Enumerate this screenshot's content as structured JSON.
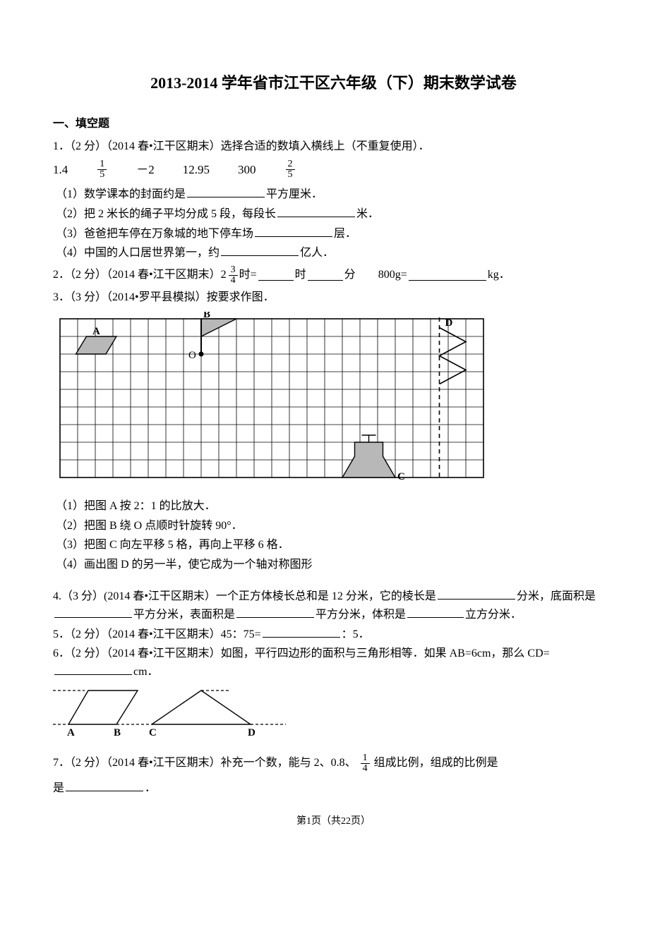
{
  "title": "2013-2014 学年省市江干区六年级（下）期末数学试卷",
  "section1": "一、填空题",
  "q1": {
    "header": "1．（2 分）（2014 春•江干区期末）选择合适的数填入横线上（不重复使用）．",
    "numbers": {
      "n1": "1.4",
      "n2_num": "1",
      "n2_den": "5",
      "n3": "－2",
      "n4": "12.95",
      "n5": "300",
      "n6_num": "2",
      "n6_den": "5"
    },
    "p1a": "（1）数学课本的封面约是",
    "p1b": "平方厘米．",
    "p2a": "（2）把 2 米长的绳子平均分成 5 段，每段长",
    "p2b": "米．",
    "p3a": "（3）爸爸把车停在万象城的地下停车场",
    "p3b": "层．",
    "p4a": "（4）中国的人口居世界第一，约",
    "p4b": "亿人．"
  },
  "q2": {
    "a": "2．（2 分）（2014 春•江干区期末）",
    "mixed_whole": "2",
    "mixed_num": "3",
    "mixed_den": "4",
    "b": "时=",
    "c": "时",
    "d": "分",
    "gap": "　　",
    "e": "800g=",
    "f": "kg．"
  },
  "q3": {
    "header": "3．（3 分）（2014•罗平县模拟）按要求作图．",
    "p1": "（1）把图 A 按 2：1 的比放大．",
    "p2": "（2）把图 B 绕 O 点顺时针旋转 90°．",
    "p3": "（3）把图 C 向左平移 5 格，再向上平移 6 格．",
    "p4": "（4）画出图 D 的另一半，使它成为一个轴对称图形"
  },
  "q4": {
    "a": "4.（3 分）(2014 春•江干区期末）一个正方体棱长总和是 12 分米，它的棱长是",
    "b": "分米，底面积是",
    "c": "平方分米，表面积是",
    "d": "平方分米，体积是",
    "e": "立方分米．"
  },
  "q5": {
    "a": "5．（2 分）（2014 春•江干区期末）45：75=",
    "b": "：5．"
  },
  "q6": {
    "a": "6．（2 分）（2014 春•江干区期末）如图，平行四边形的面积与三角形相等．如果 AB=6cm，那么 CD=",
    "b": "cm．",
    "labels": {
      "A": "A",
      "B": "B",
      "C": "C",
      "D": "D"
    }
  },
  "q7": {
    "a": "7．（2 分）（2014 春•江干区期末）补充一个数，能与 2、0.8、",
    "frac_num": "1",
    "frac_den": "4",
    "b": "组成比例，组成的比例是",
    "c": "．"
  },
  "footer": "第1页（共22页）",
  "grid": {
    "cols": 24,
    "rows": 9,
    "cell": 25,
    "labels": {
      "A": "A",
      "B": "B",
      "O": "O",
      "C": "C",
      "D": "D"
    },
    "colors": {
      "fill": "#b8b8b8",
      "line": "#000000",
      "dash": "#000000"
    }
  }
}
